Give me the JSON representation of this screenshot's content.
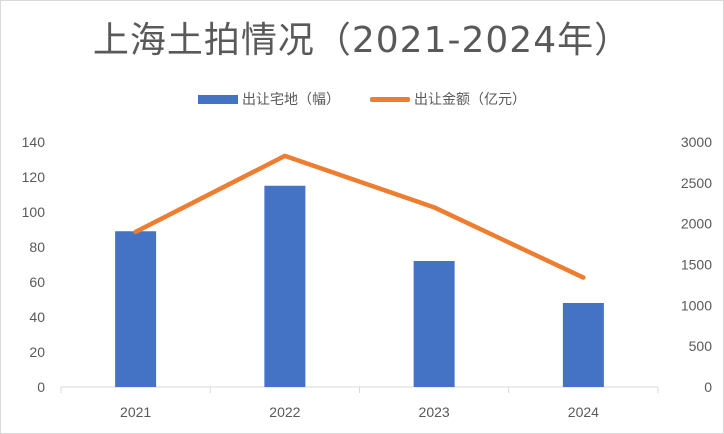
{
  "chart_data": {
    "type": "bar",
    "title": "上海土拍情况（2021-2024年）",
    "categories": [
      "2021",
      "2022",
      "2023",
      "2024"
    ],
    "series": [
      {
        "name": "出让宅地（幅）",
        "type": "bar",
        "axis": "left",
        "values": [
          89,
          115,
          72,
          48
        ],
        "color": "#4472C4"
      },
      {
        "name": "出让金额（亿元）",
        "type": "line",
        "axis": "right",
        "values": [
          1900,
          2830,
          2200,
          1340
        ],
        "color": "#ED7D31"
      }
    ],
    "y_left": {
      "min": 0,
      "max": 140,
      "step": 20,
      "ticks": [
        "0",
        "20",
        "40",
        "60",
        "80",
        "100",
        "120",
        "140"
      ]
    },
    "y_right": {
      "min": 0,
      "max": 3000,
      "step": 500,
      "ticks": [
        "0",
        "500",
        "1000",
        "1500",
        "2000",
        "2500",
        "3000"
      ]
    },
    "grid": false,
    "legend_position": "top"
  }
}
